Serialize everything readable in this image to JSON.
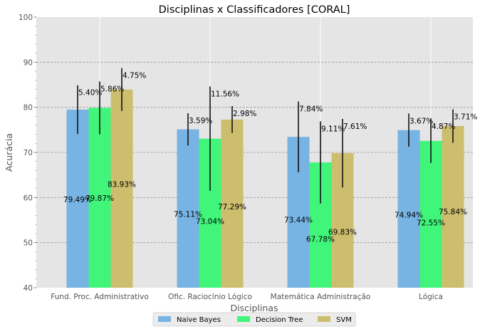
{
  "chart_data": {
    "type": "bar",
    "title": "Disciplinas x Classificadores [CORAL]",
    "xlabel": "Disciplinas",
    "ylabel": "Acurácia",
    "ylim": [
      40,
      100
    ],
    "yticks": [
      40,
      50,
      60,
      70,
      80,
      90,
      100
    ],
    "grid": true,
    "legend_position": "bottom-center",
    "categories": [
      "Fund. Proc. Administrativo",
      "Ofic. Raciocínio Lógico",
      "Matemática Administração",
      "Lógica"
    ],
    "series": [
      {
        "name": "Naive Bayes",
        "color": "#77b3e3",
        "values": [
          79.49,
          75.11,
          73.44,
          74.94
        ],
        "value_labels": [
          "79.49%",
          "75.11%",
          "73.44%",
          "74.94%"
        ],
        "errors": [
          5.4,
          3.59,
          7.84,
          3.67
        ],
        "error_labels": [
          "5.40%",
          "3.59%",
          "7.84%",
          "3.67%"
        ]
      },
      {
        "name": "Decision Tree",
        "color": "#41f57b",
        "values": [
          79.87,
          73.04,
          67.78,
          72.55
        ],
        "value_labels": [
          "79.87%",
          "73.04%",
          "67.78%",
          "72.55%"
        ],
        "errors": [
          5.86,
          11.56,
          9.11,
          4.87
        ],
        "error_labels": [
          "5.86%",
          "11.56%",
          "9.11%",
          "4.87%"
        ]
      },
      {
        "name": "SVM",
        "color": "#cdbe6d",
        "values": [
          83.93,
          77.29,
          69.83,
          75.84
        ],
        "value_labels": [
          "83.93%",
          "77.29%",
          "69.83%",
          "75.84%"
        ],
        "errors": [
          4.75,
          2.98,
          7.61,
          3.71
        ],
        "error_labels": [
          "4.75%",
          "2.98%",
          "7.61%",
          "3.71%"
        ]
      }
    ]
  }
}
